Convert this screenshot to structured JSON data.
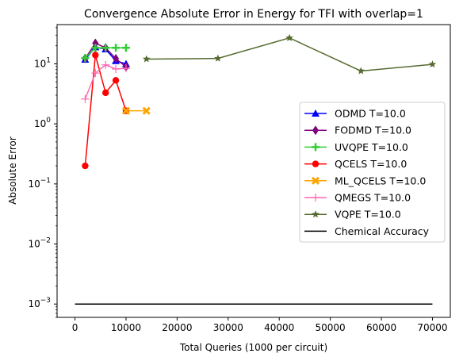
{
  "chart_data": {
    "type": "line",
    "title": "Convergence Absolute Error in Energy for TFI with overlap=1",
    "xlabel": "Total Queries (1000 per circuit)",
    "ylabel": "Absolute Error",
    "yscale": "log",
    "xlim": [
      -3500,
      73500
    ],
    "ylim": [
      0.0006,
      45
    ],
    "x_ticks": [
      0,
      10000,
      20000,
      30000,
      40000,
      50000,
      60000,
      70000
    ],
    "x_tick_labels": [
      "0",
      "10000",
      "20000",
      "30000",
      "40000",
      "50000",
      "60000",
      "70000"
    ],
    "y_ticks": [
      0.001,
      0.01,
      0.1,
      1,
      10
    ],
    "y_tick_labels": [
      {
        "base": "10",
        "exp": "−3"
      },
      {
        "base": "10",
        "exp": "−2"
      },
      {
        "base": "10",
        "exp": "−1"
      },
      {
        "base": "10",
        "exp": "0"
      },
      {
        "base": "10",
        "exp": "1"
      }
    ],
    "grid": false,
    "legend_position": "center-right",
    "series": [
      {
        "name": "ODMD T=10.0",
        "color": "#0000ff",
        "marker": "triangle",
        "x": [
          2000,
          4000,
          6000,
          8000,
          10000
        ],
        "y": [
          11.8,
          19.0,
          17.5,
          11.2,
          10.0
        ]
      },
      {
        "name": "FODMD T=10.0",
        "color": "#800080",
        "marker": "diamond",
        "x": [
          2000,
          4000,
          6000,
          8000,
          10000
        ],
        "y": [
          12.3,
          22.0,
          18.5,
          12.2,
          8.9
        ]
      },
      {
        "name": "UVQPE T=10.0",
        "color": "#32cd32",
        "marker": "plus",
        "x": [
          2000,
          4000,
          6000,
          8000,
          10000
        ],
        "y": [
          12.5,
          18.5,
          18.5,
          18.5,
          18.5
        ]
      },
      {
        "name": "QCELS T=10.0",
        "color": "#ff0000",
        "marker": "circle",
        "x": [
          2000,
          4000,
          6000,
          8000,
          10000
        ],
        "y": [
          0.2,
          14.0,
          3.3,
          5.3,
          1.65
        ]
      },
      {
        "name": "ML_QCELS T=10.0",
        "color": "#ffa500",
        "marker": "x",
        "x": [
          10000,
          14000
        ],
        "y": [
          1.65,
          1.65
        ]
      },
      {
        "name": "QMEGS T=10.0",
        "color": "#ff69b4",
        "marker": "thin-plus",
        "x": [
          2000,
          4000,
          6000,
          8000,
          10000
        ],
        "y": [
          2.6,
          7.0,
          9.6,
          8.2,
          8.4
        ]
      },
      {
        "name": "VQPE T=10.0",
        "color": "#556b2f",
        "marker": "star",
        "x": [
          14000,
          28000,
          42000,
          56000,
          70000
        ],
        "y": [
          12.0,
          12.3,
          27.0,
          7.6,
          9.8
        ]
      },
      {
        "name": "Chemical Accuracy",
        "color": "#000000",
        "marker": "none",
        "x": [
          0,
          70000
        ],
        "y": [
          0.001,
          0.001
        ]
      }
    ]
  }
}
